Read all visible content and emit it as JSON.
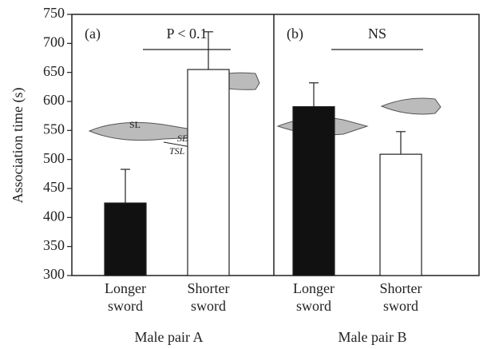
{
  "chart_data": [
    {
      "type": "bar",
      "ylabel": "Association time (s)",
      "panel_label": "(a)",
      "annotation": "P < 0.1",
      "xlabel": "Male pair A",
      "categories": [
        "Longer sword",
        "Shorter sword"
      ],
      "values": [
        425,
        655
      ],
      "errors": [
        58,
        65
      ],
      "colors": [
        "#111111",
        "#ffffff"
      ],
      "ylim": [
        300,
        750
      ],
      "yticks": [
        300,
        350,
        400,
        450,
        500,
        550,
        600,
        650,
        700,
        750
      ],
      "fish_labels": [
        "SL",
        "SEL",
        "TSL"
      ]
    },
    {
      "type": "bar",
      "panel_label": "(b)",
      "annotation": "NS",
      "xlabel": "Male pair B",
      "categories": [
        "Longer sword",
        "Shorter sword"
      ],
      "values": [
        591,
        509
      ],
      "errors": [
        41,
        39
      ],
      "colors": [
        "#111111",
        "#ffffff"
      ],
      "ylim": [
        300,
        750
      ]
    }
  ]
}
